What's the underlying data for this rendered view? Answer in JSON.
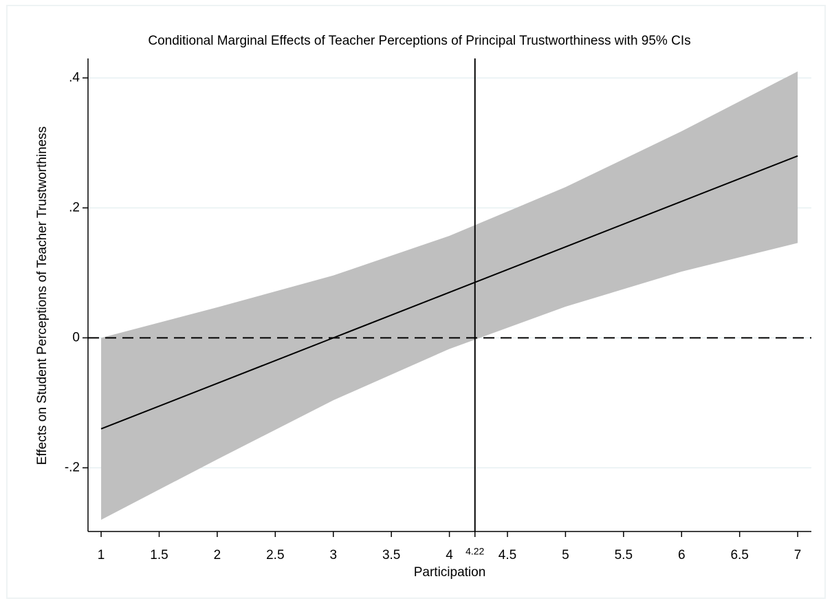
{
  "chart_data": {
    "type": "line",
    "title": "Conditional Marginal Effects of Teacher Perceptions of Principal Trustworthiness with 95% CIs",
    "xlabel": "Participation",
    "ylabel": "Effects on Student Perceptions of Teacher Trustworthiness",
    "x": [
      1,
      2,
      3,
      4,
      5,
      6,
      7
    ],
    "series": [
      {
        "color": "#000000",
        "values": [
          -0.14,
          -0.07,
          0,
          0.07,
          0.14,
          0.21,
          0.28
        ]
      }
    ],
    "band": {
      "color": "#bfbfbf",
      "lower": [
        -0.28,
        -0.187,
        -0.096,
        -0.017,
        0.048,
        0.102,
        0.146
      ],
      "upper": [
        0,
        0.047,
        0.096,
        0.157,
        0.232,
        0.318,
        0.41
      ]
    },
    "xlim": [
      0.887,
      7.118
    ],
    "ylim": [
      -0.298,
      0.43
    ],
    "xticks": [
      1,
      1.5,
      2,
      2.5,
      3,
      3.5,
      4,
      4.5,
      5,
      5.5,
      6,
      6.5,
      7
    ],
    "yticks": [
      {
        "value": -0.2,
        "label": "-.2"
      },
      0,
      {
        "value": 0.2,
        "label": ".2"
      },
      {
        "value": 0.4,
        "label": ".4"
      }
    ],
    "xline": 4.22,
    "yline": 0,
    "grid": true,
    "grid_color": "#e6f0f2"
  }
}
